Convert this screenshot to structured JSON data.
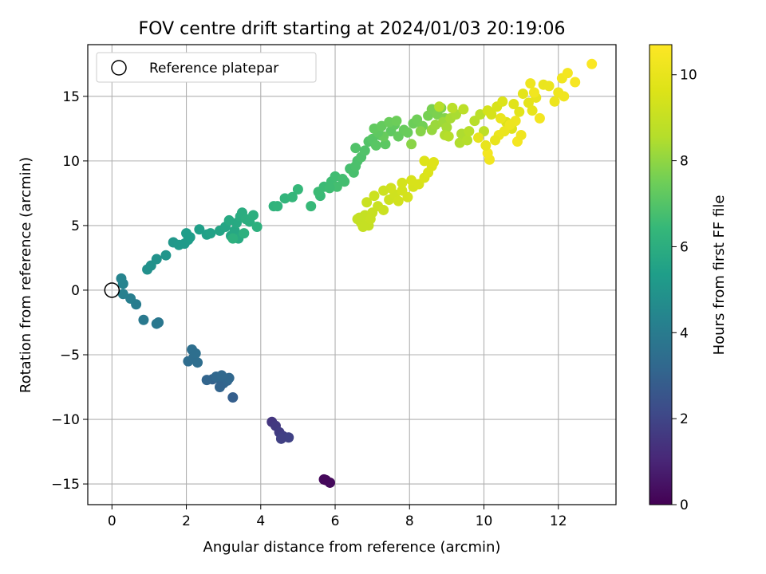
{
  "chart_data": {
    "type": "scatter",
    "title": "FOV centre drift starting at 2024/01/03 20:19:06",
    "xlabel": "Angular distance from reference (arcmin)",
    "ylabel": "Rotation from reference (arcmin)",
    "xlim": [
      -0.65,
      13.55
    ],
    "ylim": [
      -16.6,
      19.0
    ],
    "xticks": [
      0,
      2,
      4,
      6,
      8,
      10,
      12
    ],
    "yticks": [
      -15,
      -10,
      -5,
      0,
      5,
      10,
      15
    ],
    "grid": true,
    "legend": {
      "location": "top-left",
      "entries": [
        "Reference platepar"
      ]
    },
    "reference_point": {
      "x": 0,
      "y": 0,
      "label": "Reference platepar"
    },
    "colorbar": {
      "label": "Hours from first FF file",
      "min": 0,
      "max": 10.7,
      "ticks": [
        0,
        2,
        4,
        6,
        8,
        10
      ],
      "colormap": "viridis"
    },
    "series": [
      {
        "points": [
          [
            5.75,
            -14.7,
            0.15
          ],
          [
            5.86,
            -14.9,
            0.25
          ],
          [
            5.7,
            -14.65,
            0.2
          ],
          [
            4.3,
            -10.2,
            1.5
          ],
          [
            4.4,
            -10.5,
            1.6
          ],
          [
            4.5,
            -11.0,
            1.7
          ],
          [
            4.6,
            -11.3,
            1.8
          ],
          [
            4.75,
            -11.4,
            1.9
          ],
          [
            4.55,
            -11.5,
            1.85
          ],
          [
            2.85,
            -6.8,
            3.0
          ],
          [
            3.0,
            -7.2,
            3.1
          ],
          [
            2.7,
            -6.9,
            3.0
          ],
          [
            3.1,
            -7.0,
            3.15
          ],
          [
            3.25,
            -8.3,
            2.9
          ],
          [
            2.9,
            -7.5,
            3.05
          ],
          [
            3.15,
            -6.8,
            3.2
          ],
          [
            2.55,
            -6.95,
            3.1
          ],
          [
            2.8,
            -6.7,
            3.2
          ],
          [
            2.95,
            -6.6,
            3.25
          ],
          [
            2.05,
            -5.5,
            3.4
          ],
          [
            2.2,
            -5.2,
            3.45
          ],
          [
            2.15,
            -4.6,
            3.5
          ],
          [
            2.3,
            -5.6,
            3.45
          ],
          [
            2.25,
            -4.9,
            3.5
          ],
          [
            1.25,
            -2.5,
            3.8
          ],
          [
            1.2,
            -2.6,
            3.85
          ],
          [
            0.85,
            -2.3,
            3.9
          ],
          [
            0.65,
            -1.1,
            4.05
          ],
          [
            0.5,
            -0.65,
            4.1
          ],
          [
            0.3,
            -0.3,
            4.2
          ],
          [
            0.3,
            0.5,
            4.3
          ],
          [
            0.25,
            0.9,
            4.35
          ],
          [
            0.95,
            1.6,
            4.8
          ],
          [
            1.05,
            1.9,
            4.85
          ],
          [
            1.2,
            2.4,
            4.9
          ],
          [
            1.45,
            2.7,
            5.0
          ],
          [
            1.65,
            3.7,
            5.1
          ],
          [
            1.8,
            3.5,
            5.15
          ],
          [
            1.95,
            3.6,
            5.2
          ],
          [
            2.05,
            3.9,
            5.25
          ],
          [
            2.0,
            4.4,
            5.3
          ],
          [
            2.1,
            4.1,
            5.3
          ],
          [
            2.35,
            4.7,
            5.4
          ],
          [
            2.55,
            4.3,
            5.45
          ],
          [
            2.65,
            4.4,
            5.5
          ],
          [
            2.9,
            4.6,
            5.6
          ],
          [
            3.05,
            4.9,
            5.65
          ],
          [
            3.2,
            4.2,
            5.7
          ],
          [
            3.3,
            4.6,
            5.75
          ],
          [
            3.35,
            5.2,
            5.8
          ],
          [
            3.15,
            5.4,
            5.8
          ],
          [
            3.4,
            4.0,
            5.85
          ],
          [
            3.45,
            5.7,
            5.9
          ],
          [
            3.5,
            6.0,
            5.95
          ],
          [
            3.6,
            5.5,
            6.0
          ],
          [
            3.7,
            5.3,
            6.0
          ],
          [
            3.8,
            5.8,
            6.05
          ],
          [
            3.9,
            4.9,
            6.1
          ],
          [
            3.55,
            4.4,
            6.1
          ],
          [
            3.25,
            4.0,
            6.1
          ],
          [
            4.35,
            6.5,
            6.2
          ],
          [
            4.45,
            6.5,
            6.25
          ],
          [
            4.65,
            7.1,
            6.3
          ],
          [
            5.0,
            7.8,
            6.4
          ],
          [
            5.35,
            6.5,
            6.45
          ],
          [
            5.6,
            7.3,
            6.5
          ],
          [
            5.7,
            8.0,
            6.55
          ],
          [
            5.9,
            8.4,
            6.6
          ],
          [
            6.0,
            8.8,
            6.65
          ],
          [
            6.2,
            8.6,
            6.7
          ],
          [
            6.25,
            8.4,
            6.7
          ],
          [
            6.4,
            9.4,
            6.75
          ],
          [
            6.5,
            9.1,
            6.8
          ],
          [
            6.6,
            10.0,
            6.85
          ],
          [
            6.55,
            9.6,
            6.85
          ],
          [
            6.7,
            10.3,
            6.9
          ],
          [
            6.8,
            10.8,
            6.95
          ],
          [
            6.55,
            11.0,
            6.95
          ],
          [
            6.9,
            11.5,
            7.0
          ],
          [
            7.0,
            11.7,
            7.05
          ],
          [
            7.1,
            11.2,
            7.1
          ],
          [
            7.2,
            12.0,
            7.1
          ],
          [
            7.35,
            11.3,
            7.15
          ],
          [
            7.5,
            12.3,
            7.2
          ],
          [
            7.6,
            12.8,
            7.25
          ],
          [
            7.7,
            11.9,
            7.3
          ],
          [
            7.85,
            12.4,
            7.35
          ],
          [
            7.95,
            12.2,
            7.4
          ],
          [
            8.1,
            12.9,
            7.45
          ],
          [
            8.2,
            13.2,
            7.5
          ],
          [
            8.35,
            12.7,
            7.55
          ],
          [
            8.5,
            13.5,
            7.6
          ],
          [
            8.6,
            14.0,
            7.65
          ],
          [
            8.75,
            13.6,
            7.7
          ],
          [
            8.85,
            14.1,
            7.75
          ],
          [
            8.95,
            13.3,
            7.8
          ],
          [
            8.3,
            12.3,
            7.85
          ],
          [
            8.05,
            11.3,
            7.9
          ],
          [
            7.3,
            11.9,
            7.35
          ],
          [
            7.15,
            12.2,
            7.2
          ],
          [
            7.05,
            12.5,
            7.25
          ],
          [
            7.25,
            12.7,
            7.3
          ],
          [
            7.45,
            13.0,
            7.4
          ],
          [
            7.65,
            13.1,
            7.45
          ],
          [
            6.05,
            8.0,
            6.7
          ],
          [
            5.85,
            7.9,
            6.6
          ],
          [
            5.55,
            7.6,
            6.55
          ],
          [
            4.85,
            7.2,
            6.35
          ],
          [
            8.6,
            12.4,
            8.1
          ],
          [
            8.7,
            12.8,
            8.15
          ],
          [
            8.9,
            13.0,
            8.2
          ],
          [
            9.0,
            12.6,
            8.3
          ],
          [
            9.1,
            13.3,
            8.35
          ],
          [
            9.25,
            13.6,
            8.4
          ],
          [
            9.4,
            12.1,
            8.45
          ],
          [
            9.35,
            11.4,
            8.5
          ],
          [
            9.55,
            11.6,
            8.55
          ],
          [
            9.6,
            12.3,
            8.6
          ],
          [
            9.75,
            13.1,
            8.65
          ],
          [
            9.9,
            13.6,
            8.7
          ],
          [
            10.0,
            12.3,
            8.8
          ],
          [
            9.45,
            14.0,
            8.75
          ],
          [
            9.15,
            14.1,
            8.7
          ],
          [
            8.8,
            14.2,
            8.6
          ],
          [
            8.95,
            12.0,
            8.5
          ],
          [
            9.05,
            11.9,
            8.6
          ],
          [
            6.65,
            5.6,
            8.9
          ],
          [
            6.8,
            5.8,
            8.95
          ],
          [
            6.7,
            5.2,
            9.0
          ],
          [
            6.9,
            5.0,
            9.0
          ],
          [
            7.0,
            6.0,
            9.05
          ],
          [
            7.15,
            6.5,
            9.1
          ],
          [
            7.3,
            6.2,
            9.15
          ],
          [
            6.95,
            5.5,
            9.05
          ],
          [
            7.45,
            7.0,
            9.2
          ],
          [
            7.6,
            7.4,
            9.25
          ],
          [
            7.7,
            6.9,
            9.3
          ],
          [
            7.8,
            7.7,
            9.35
          ],
          [
            7.95,
            7.2,
            9.4
          ],
          [
            8.1,
            8.0,
            9.45
          ],
          [
            8.25,
            8.2,
            9.5
          ],
          [
            8.4,
            8.7,
            9.55
          ],
          [
            8.5,
            9.1,
            9.6
          ],
          [
            8.6,
            9.6,
            9.65
          ],
          [
            8.65,
            9.9,
            9.7
          ],
          [
            8.4,
            10.0,
            9.65
          ],
          [
            8.05,
            8.5,
            9.5
          ],
          [
            7.8,
            8.3,
            9.4
          ],
          [
            7.5,
            7.9,
            9.3
          ],
          [
            7.3,
            7.7,
            9.2
          ],
          [
            7.05,
            7.3,
            9.15
          ],
          [
            6.85,
            6.8,
            9.1
          ],
          [
            6.6,
            5.5,
            8.95
          ],
          [
            6.75,
            4.9,
            9.0
          ],
          [
            10.1,
            13.9,
            9.4
          ],
          [
            10.2,
            13.6,
            9.45
          ],
          [
            10.35,
            14.2,
            9.5
          ],
          [
            10.5,
            14.6,
            9.6
          ],
          [
            10.6,
            13.0,
            9.65
          ],
          [
            10.75,
            12.5,
            9.7
          ],
          [
            10.8,
            14.4,
            9.75
          ],
          [
            10.95,
            13.8,
            9.8
          ],
          [
            11.05,
            15.2,
            9.85
          ],
          [
            11.2,
            14.5,
            9.9
          ],
          [
            11.3,
            13.9,
            9.95
          ],
          [
            11.4,
            14.9,
            10.0
          ],
          [
            11.6,
            15.9,
            10.05
          ],
          [
            11.75,
            15.8,
            10.1
          ],
          [
            11.9,
            14.6,
            10.15
          ],
          [
            12.0,
            15.3,
            10.2
          ],
          [
            12.15,
            15.0,
            10.25
          ],
          [
            12.1,
            16.4,
            10.3
          ],
          [
            12.25,
            16.8,
            10.4
          ],
          [
            12.45,
            16.1,
            10.45
          ],
          [
            12.9,
            17.5,
            10.6
          ],
          [
            10.15,
            10.1,
            10.3
          ],
          [
            10.1,
            10.6,
            10.35
          ],
          [
            10.9,
            11.5,
            10.4
          ],
          [
            10.4,
            12.0,
            10.1
          ],
          [
            10.3,
            11.6,
            10.0
          ],
          [
            10.55,
            12.3,
            10.1
          ],
          [
            10.85,
            13.1,
            10.2
          ],
          [
            11.0,
            12.0,
            10.25
          ],
          [
            11.5,
            13.3,
            10.35
          ],
          [
            11.35,
            15.3,
            10.3
          ],
          [
            11.25,
            16.0,
            10.2
          ],
          [
            10.7,
            12.8,
            10.15
          ],
          [
            10.45,
            13.3,
            10.05
          ],
          [
            9.85,
            11.8,
            9.95
          ],
          [
            10.05,
            11.2,
            10.0
          ]
        ]
      }
    ]
  }
}
